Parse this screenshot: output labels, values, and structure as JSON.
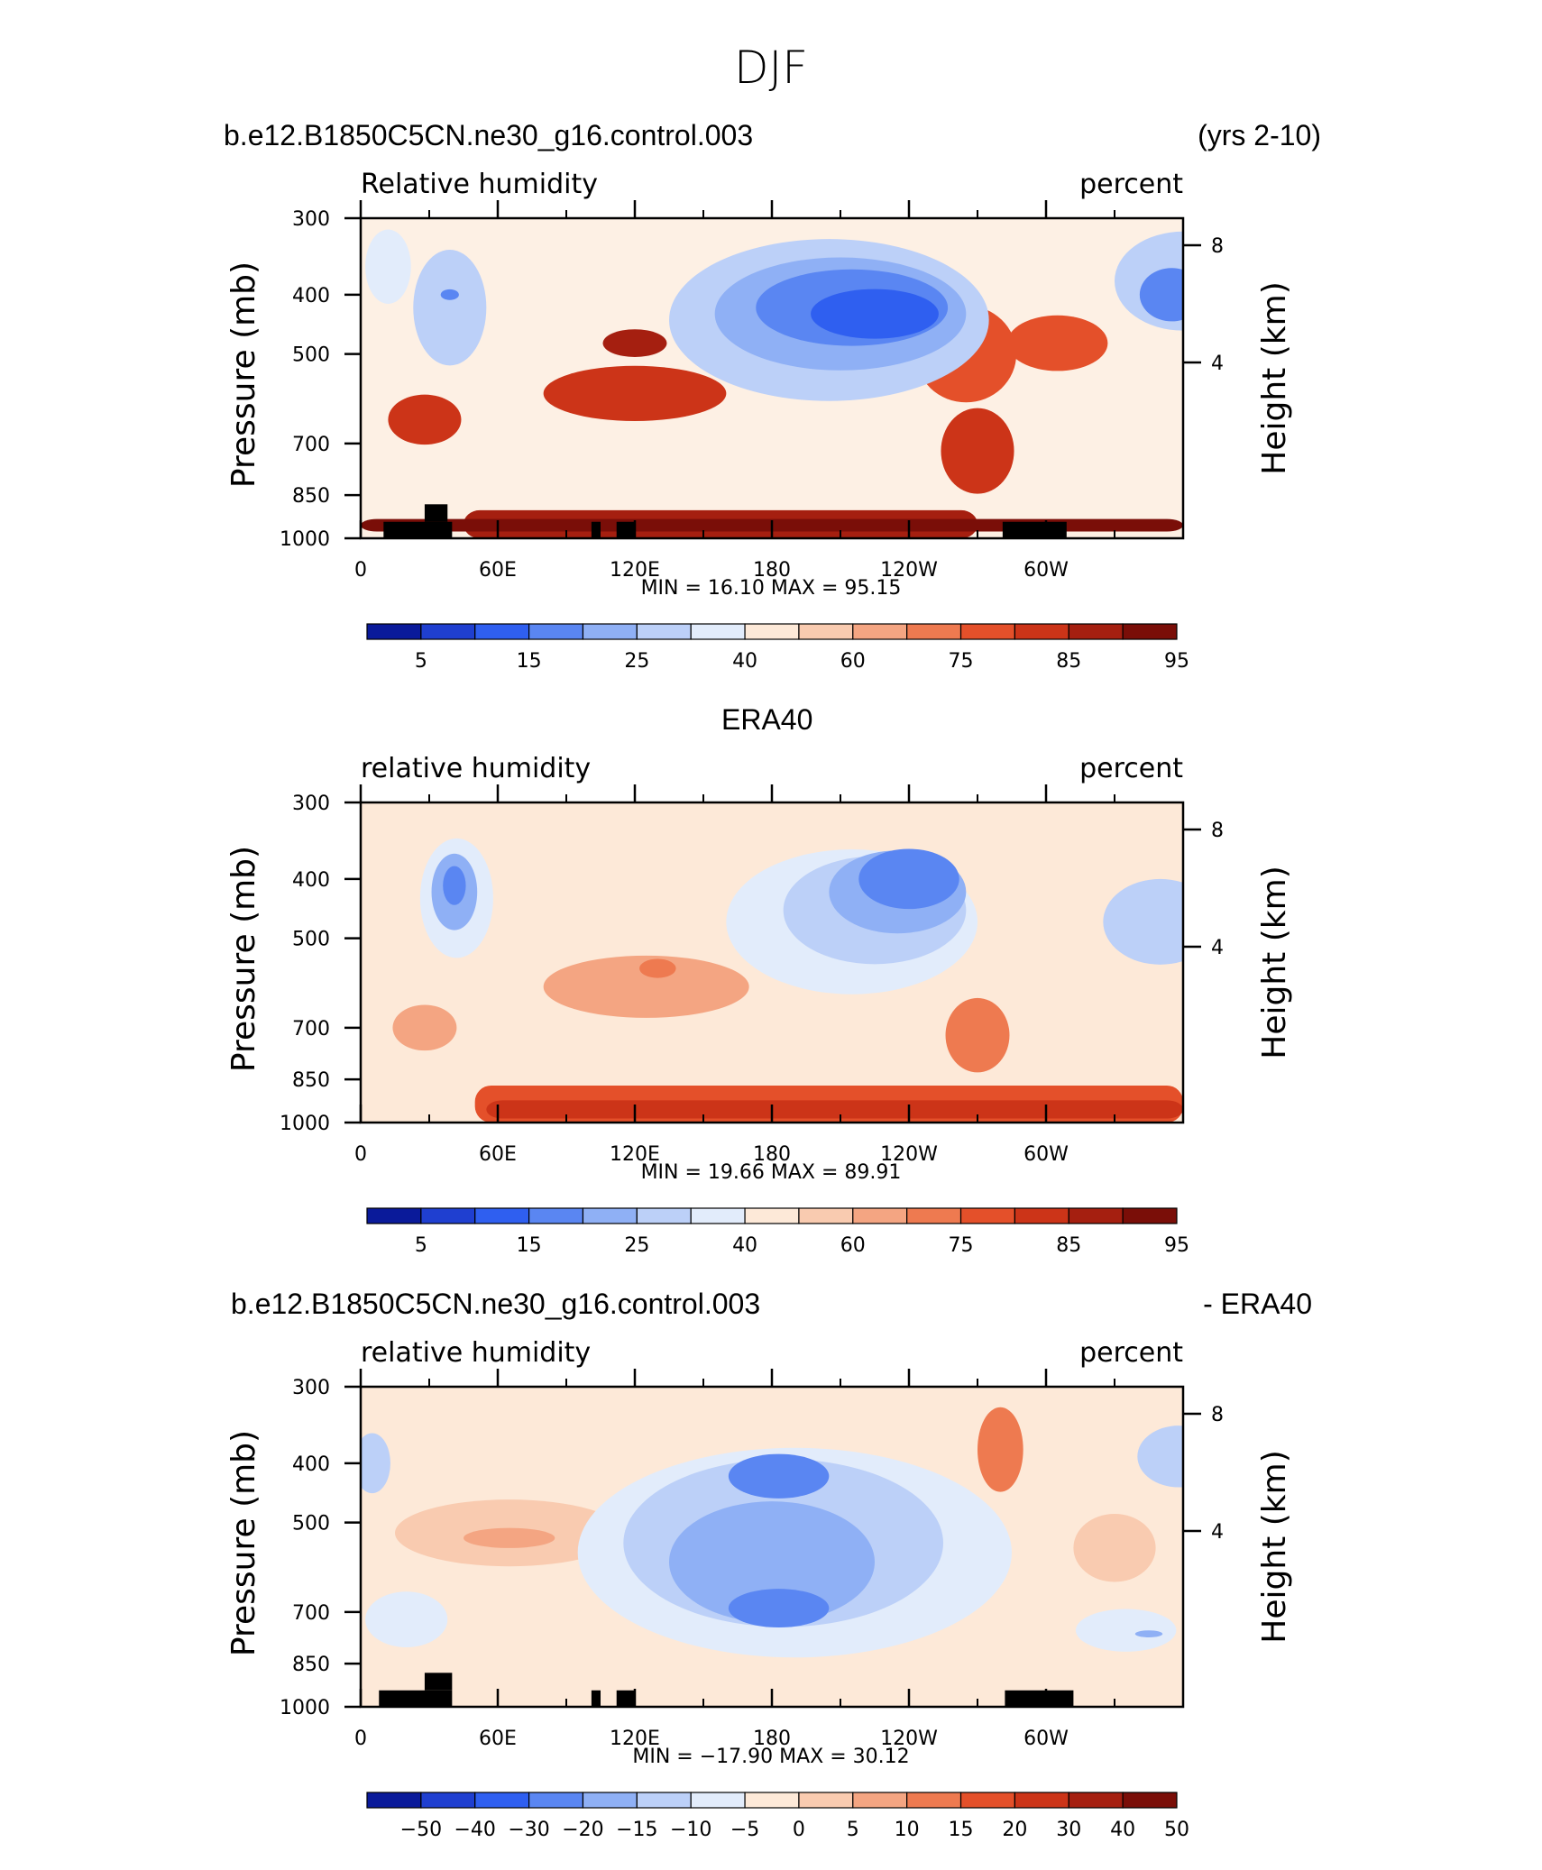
{
  "figure": {
    "title": "DJF",
    "panel1_left": "b.e12.B1850C5CN.ne30_g16.control.003",
    "panel1_right": "(yrs 2-10)",
    "panel2_center": "ERA40",
    "panel3_left": "b.e12.B1850C5CN.ne30_g16.control.003",
    "panel3_right": "- ERA40"
  },
  "chart_data": [
    {
      "type": "heatmap",
      "variable": "Relative humidity",
      "units": "percent",
      "xlabel": "",
      "ylabel": "Pressure (mb)",
      "ylabel_right": "Height (km)",
      "x_ticks": [
        "0",
        "60E",
        "120E",
        "180",
        "120W",
        "60W"
      ],
      "x_range": [
        0,
        360
      ],
      "y_ticks": [
        300,
        400,
        500,
        700,
        850,
        1000
      ],
      "y_range": [
        1000,
        300
      ],
      "right_ticks": [
        8,
        4
      ],
      "min": "16.10",
      "max": "95.15",
      "stats_text": "MIN =   16.10   MAX =   95.15",
      "colorbar_labels": [
        "5",
        "15",
        "25",
        "40",
        "60",
        "75",
        "85",
        "95"
      ],
      "colorbar_colors": [
        "#0a1a9a",
        "#1f3fd0",
        "#2f5ff0",
        "#5a86f2",
        "#8fb0f5",
        "#bcd0f8",
        "#e2ecfb",
        "#fde9d8",
        "#f9cbb0",
        "#f4a582",
        "#ee7a50",
        "#e4502a",
        "#cc3418",
        "#a51f10",
        "#7a0e08"
      ],
      "colors": {
        "background": "#fdf0e4"
      },
      "topography": [
        [
          10,
          40,
          1000,
          940
        ],
        [
          28,
          38,
          940,
          880
        ],
        [
          101,
          105,
          1000,
          940
        ],
        [
          112,
          120,
          1000,
          940
        ],
        [
          281,
          309,
          1000,
          940
        ]
      ],
      "features": [
        {
          "x": 120,
          "p": 580,
          "rx": 40,
          "rh": 120,
          "level": 12
        },
        {
          "x": 120,
          "p": 480,
          "rx": 14,
          "rh": 50,
          "level": 13
        },
        {
          "x": 28,
          "p": 640,
          "rx": 16,
          "rh": 120,
          "level": 12
        },
        {
          "x": 265,
          "p": 500,
          "rx": 22,
          "rh": 180,
          "level": 11
        },
        {
          "x": 270,
          "p": 720,
          "rx": 16,
          "rh": 230,
          "level": 12
        },
        {
          "x": 305,
          "p": 480,
          "rx": 22,
          "rh": 100,
          "level": 11
        },
        {
          "x": 39,
          "p": 420,
          "rx": 16,
          "rh": 180,
          "level": 5
        },
        {
          "x": 39,
          "p": 400,
          "rx": 4,
          "rh": 16,
          "level": 3
        },
        {
          "x": 12,
          "p": 360,
          "rx": 10,
          "rh": 100,
          "level": 6
        },
        {
          "x": 360,
          "p": 380,
          "rx": 30,
          "rh": 140,
          "level": 5
        },
        {
          "x": 355,
          "p": 400,
          "rx": 14,
          "rh": 80,
          "level": 3
        },
        {
          "x": 205,
          "p": 440,
          "rx": 70,
          "rh": 260,
          "level": 5
        },
        {
          "x": 210,
          "p": 430,
          "rx": 55,
          "rh": 180,
          "level": 4
        },
        {
          "x": 215,
          "p": 420,
          "rx": 42,
          "rh": 120,
          "level": 3
        },
        {
          "x": 225,
          "p": 430,
          "rx": 28,
          "rh": 80,
          "level": 2
        }
      ],
      "bands": [
        {
          "x0": 45,
          "x1": 270,
          "p0": 900,
          "p1": 1000,
          "level": 13
        },
        {
          "x0": 0,
          "x1": 360,
          "p0": 930,
          "p1": 975,
          "level": 14
        }
      ]
    },
    {
      "type": "heatmap",
      "variable": "relative humidity",
      "units": "percent",
      "xlabel": "",
      "ylabel": "Pressure (mb)",
      "ylabel_right": "Height (km)",
      "x_ticks": [
        "0",
        "60E",
        "120E",
        "180",
        "120W",
        "60W"
      ],
      "x_range": [
        0,
        360
      ],
      "y_ticks": [
        300,
        400,
        500,
        700,
        850,
        1000
      ],
      "y_range": [
        1000,
        300
      ],
      "right_ticks": [
        8,
        4
      ],
      "min": "19.66",
      "max": "89.91",
      "stats_text": "MIN =   19.66   MAX =   89.91",
      "colorbar_labels": [
        "5",
        "15",
        "25",
        "40",
        "60",
        "75",
        "85",
        "95"
      ],
      "colorbar_colors": [
        "#0a1a9a",
        "#1f3fd0",
        "#2f5ff0",
        "#5a86f2",
        "#8fb0f5",
        "#bcd0f8",
        "#e2ecfb",
        "#fde9d8",
        "#f9cbb0",
        "#f4a582",
        "#ee7a50",
        "#e4502a",
        "#cc3418",
        "#a51f10",
        "#7a0e08"
      ],
      "colors": {
        "background": "#fde9d8"
      },
      "topography": [],
      "features": [
        {
          "x": 125,
          "p": 600,
          "rx": 45,
          "rh": 140,
          "level": 9
        },
        {
          "x": 130,
          "p": 560,
          "rx": 8,
          "rh": 40,
          "level": 10
        },
        {
          "x": 28,
          "p": 700,
          "rx": 14,
          "rh": 120,
          "level": 9
        },
        {
          "x": 270,
          "p": 720,
          "rx": 14,
          "rh": 200,
          "level": 10
        },
        {
          "x": 42,
          "p": 430,
          "rx": 16,
          "rh": 190,
          "level": 6
        },
        {
          "x": 41,
          "p": 420,
          "rx": 10,
          "rh": 120,
          "level": 4
        },
        {
          "x": 41,
          "p": 410,
          "rx": 5,
          "rh": 60,
          "level": 3
        },
        {
          "x": 350,
          "p": 470,
          "rx": 25,
          "rh": 150,
          "level": 5
        },
        {
          "x": 215,
          "p": 470,
          "rx": 55,
          "rh": 250,
          "level": 6
        },
        {
          "x": 225,
          "p": 450,
          "rx": 40,
          "rh": 180,
          "level": 5
        },
        {
          "x": 235,
          "p": 420,
          "rx": 30,
          "rh": 130,
          "level": 4
        },
        {
          "x": 240,
          "p": 400,
          "rx": 22,
          "rh": 90,
          "level": 3
        }
      ],
      "bands": [
        {
          "x0": 50,
          "x1": 360,
          "p0": 870,
          "p1": 1000,
          "level": 11
        },
        {
          "x0": 55,
          "x1": 360,
          "p0": 920,
          "p1": 985,
          "level": 12
        }
      ]
    },
    {
      "type": "heatmap",
      "variable": "relative humidity",
      "units": "percent",
      "xlabel": "",
      "ylabel": "Pressure (mb)",
      "ylabel_right": "Height (km)",
      "x_ticks": [
        "0",
        "60E",
        "120E",
        "180",
        "120W",
        "60W"
      ],
      "x_range": [
        0,
        360
      ],
      "y_ticks": [
        300,
        400,
        500,
        700,
        850,
        1000
      ],
      "y_range": [
        1000,
        300
      ],
      "right_ticks": [
        8,
        4
      ],
      "min": "-17.90",
      "max": "30.12",
      "stats_text": "MIN = −17.90   MAX =   30.12",
      "colorbar_labels": [
        "−50",
        "−40",
        "−30",
        "−20",
        "−15",
        "−10",
        "−5",
        "0",
        "5",
        "10",
        "15",
        "20",
        "30",
        "40",
        "50"
      ],
      "colorbar_colors": [
        "#0a1a9a",
        "#1f3fd0",
        "#2f5ff0",
        "#5a86f2",
        "#8fb0f5",
        "#bcd0f8",
        "#e2ecfb",
        "#fde9d8",
        "#f9cbb0",
        "#f4a582",
        "#ee7a50",
        "#e4502a",
        "#cc3418",
        "#a51f10",
        "#7a0e08"
      ],
      "colors": {
        "background": "#fde9d8"
      },
      "topography": [
        [
          8,
          40,
          1000,
          940
        ],
        [
          28,
          40,
          940,
          880
        ],
        [
          101,
          105,
          1000,
          940
        ],
        [
          112,
          120,
          1000,
          940
        ],
        [
          282,
          312,
          1000,
          940
        ]
      ],
      "features": [
        {
          "x": 65,
          "p": 520,
          "rx": 50,
          "rh": 130,
          "level": 8
        },
        {
          "x": 65,
          "p": 530,
          "rx": 20,
          "rh": 40,
          "level": 9
        },
        {
          "x": 20,
          "p": 720,
          "rx": 18,
          "rh": 150,
          "level": 6
        },
        {
          "x": 335,
          "p": 750,
          "rx": 22,
          "rh": 120,
          "level": 6
        },
        {
          "x": 345,
          "p": 760,
          "rx": 6,
          "rh": 20,
          "level": 4
        },
        {
          "x": 280,
          "p": 380,
          "rx": 10,
          "rh": 120,
          "level": 10
        },
        {
          "x": 330,
          "p": 550,
          "rx": 18,
          "rh": 140,
          "level": 8
        },
        {
          "x": 5,
          "p": 400,
          "rx": 8,
          "rh": 90,
          "level": 5
        },
        {
          "x": 358,
          "p": 390,
          "rx": 18,
          "rh": 90,
          "level": 5
        },
        {
          "x": 190,
          "p": 560,
          "rx": 95,
          "rh": 420,
          "level": 6
        },
        {
          "x": 185,
          "p": 540,
          "rx": 70,
          "rh": 330,
          "level": 5
        },
        {
          "x": 180,
          "p": 580,
          "rx": 45,
          "rh": 260,
          "level": 4
        },
        {
          "x": 183,
          "p": 420,
          "rx": 22,
          "rh": 70,
          "level": 3
        },
        {
          "x": 183,
          "p": 690,
          "rx": 22,
          "rh": 100,
          "level": 3
        }
      ],
      "bands": [
        {
          "x0": 120,
          "x1": 290,
          "p0": 860,
          "p1": 1000,
          "level": 7
        }
      ]
    }
  ]
}
